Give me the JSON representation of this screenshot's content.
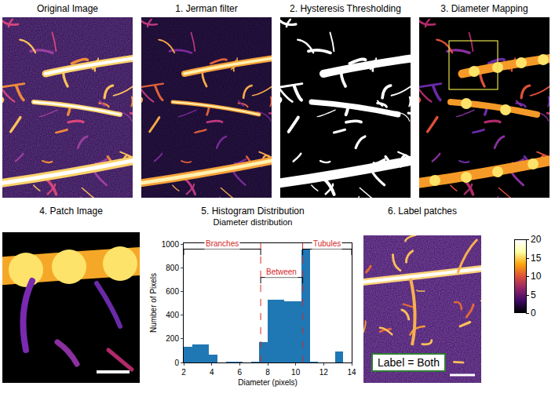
{
  "panels": {
    "original": "Original Image",
    "jerman": "1. Jerman filter",
    "hysteresis": "2. Hysteresis Thresholding",
    "diameter": "3. Diameter Mapping",
    "patch": "4. Patch Image",
    "histogram": "5. Histogram Distribution",
    "label": "6. Label patches"
  },
  "label_box": "Label = Both",
  "colorbar": {
    "range": [
      0,
      20
    ],
    "ticks": [
      0,
      5,
      10,
      15,
      20
    ]
  },
  "chart_data": {
    "type": "histogram",
    "title": "Diameter distribution",
    "x_label": "Diameter (pixels)",
    "y_label": "Number of Pixels",
    "bins": [
      2,
      2.6,
      3.2,
      3.8,
      4.4,
      5,
      5.6,
      6.2,
      6.8,
      7.4,
      8,
      8.6,
      9.2,
      9.8,
      10.4,
      11,
      11.6,
      12.2,
      12.8,
      13.4,
      14
    ],
    "counts": [
      130,
      155,
      155,
      65,
      0,
      10,
      10,
      0,
      5,
      175,
      530,
      530,
      520,
      520,
      960,
      10,
      0,
      0,
      95,
      0
    ],
    "color": "#1f77b4",
    "xlim": [
      2,
      14
    ],
    "xticks": [
      2,
      4,
      6,
      8,
      10,
      12,
      14
    ],
    "ylim": [
      0,
      1010
    ],
    "yticks": [
      0,
      200,
      400,
      600,
      800,
      1000
    ],
    "thresholds": [
      7.5,
      10.5
    ],
    "regions": [
      {
        "label": "Branches",
        "from": 2,
        "to": 7.5,
        "y": 960
      },
      {
        "label": "Between",
        "from": 7.5,
        "to": 10.5,
        "y": 720
      },
      {
        "label": "Tubules",
        "from": 10.5,
        "to": 14,
        "y": 960
      }
    ]
  }
}
